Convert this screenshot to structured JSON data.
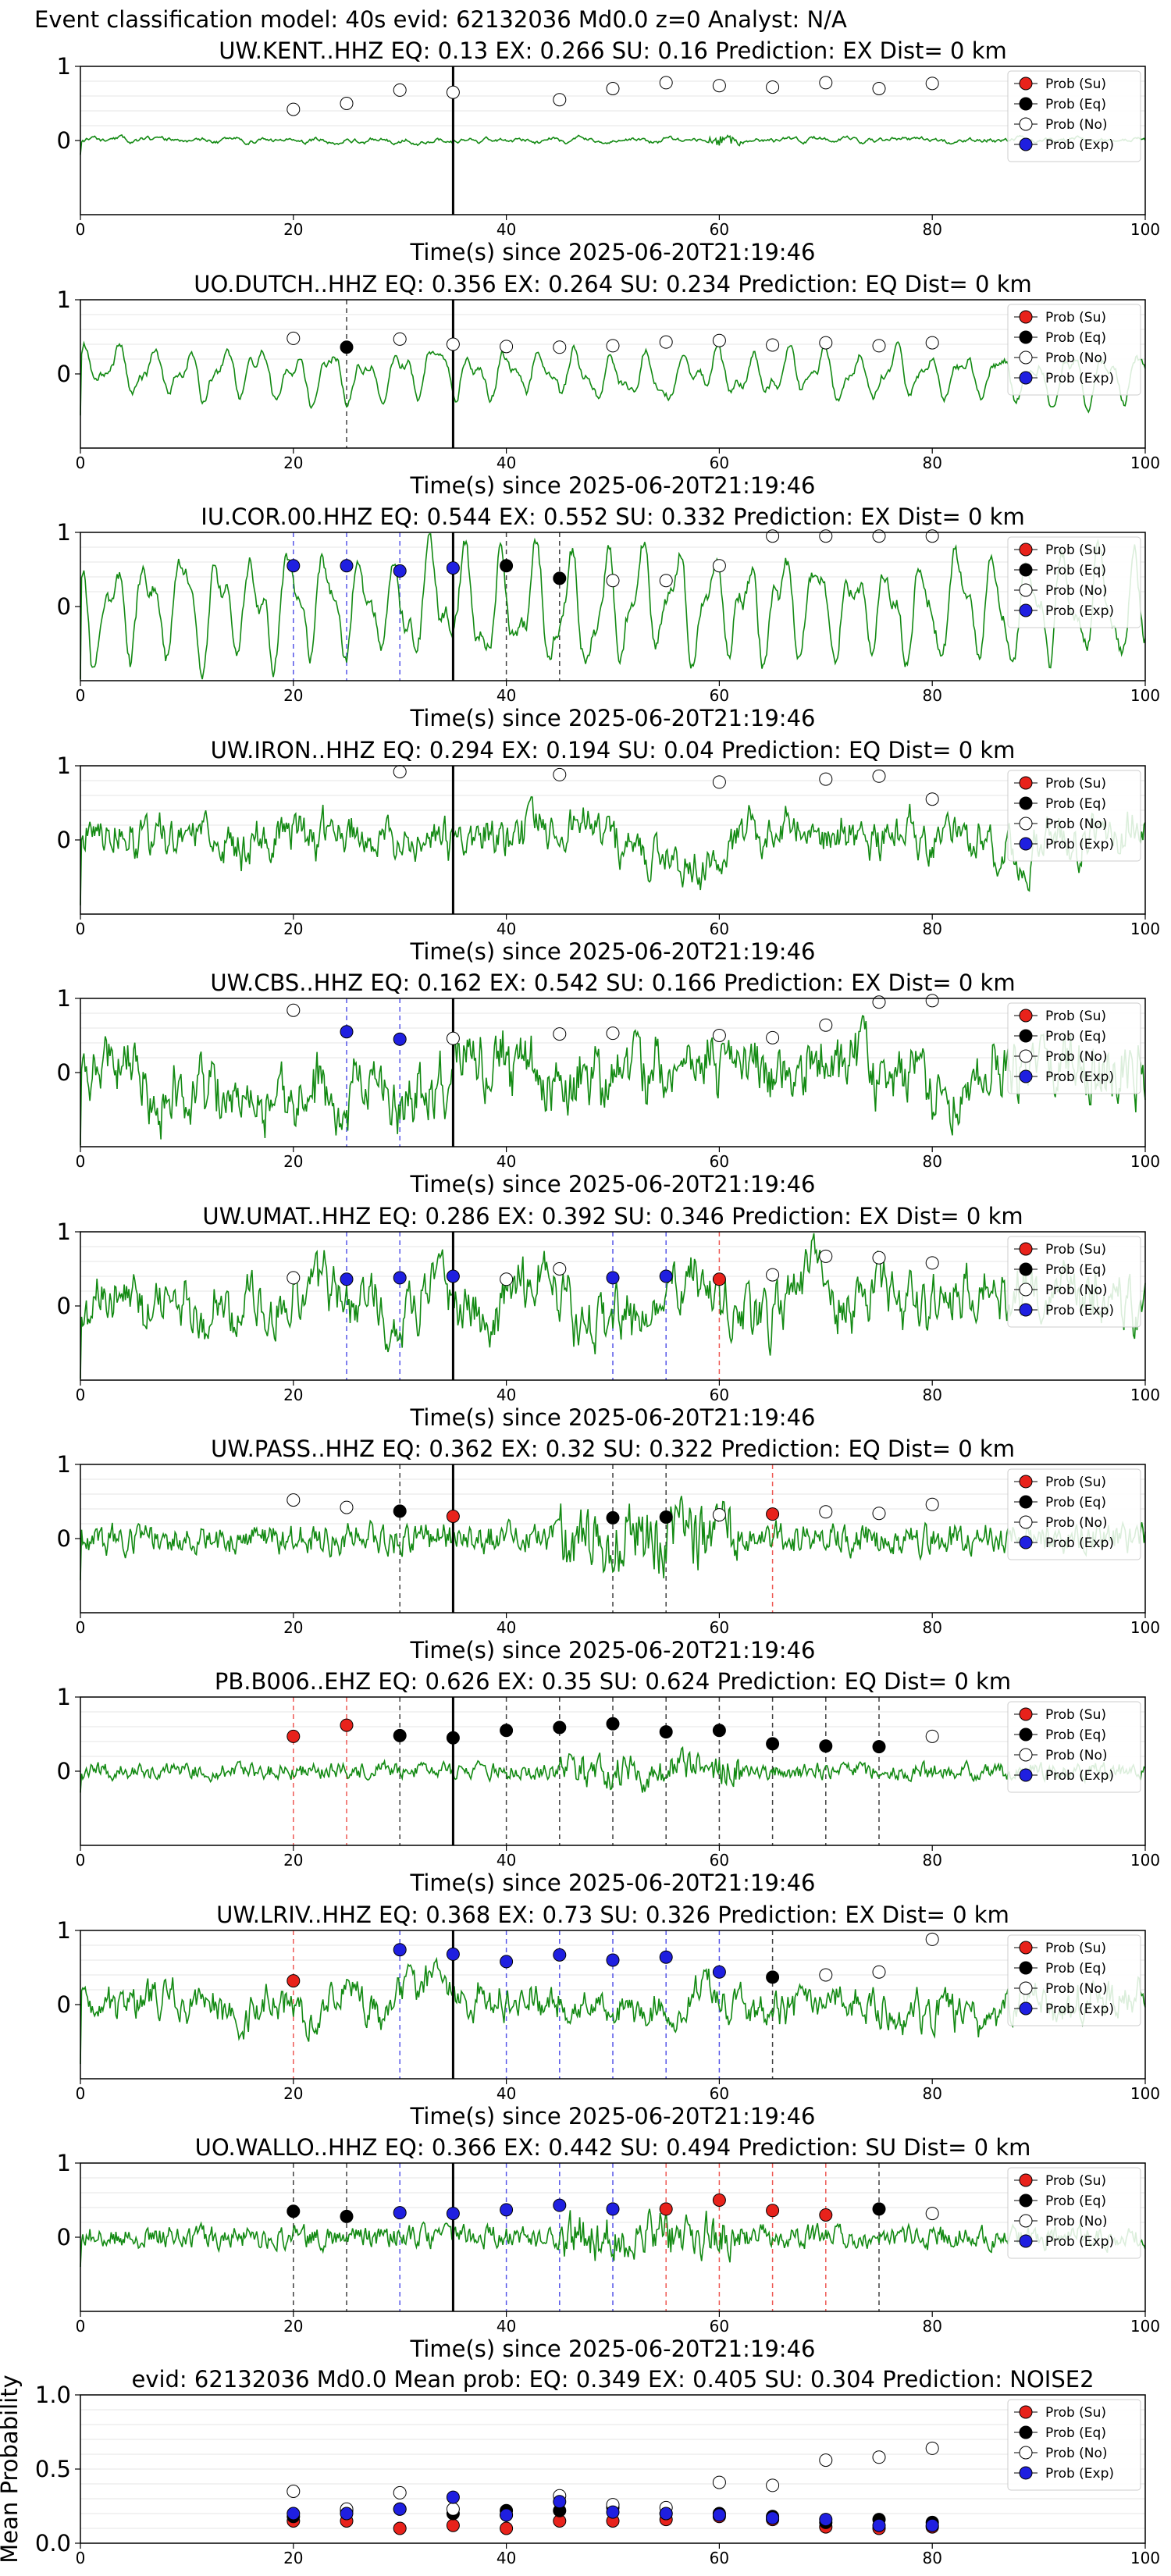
{
  "figure_title": "Event classification model: 40s evid: 62132036 Md0.0 z=0 Analyst: N/A",
  "legend_labels": [
    "Prob (Su)",
    "Prob (Eq)",
    "Prob (No)",
    "Prob (Exp)"
  ],
  "colors": {
    "su": "#e8221b",
    "eq": "#000000",
    "no": "#ffffff",
    "exp": "#1f1fe0",
    "trace": "#138a13",
    "event_line": "#000000",
    "grid": "#e6e6e6"
  },
  "chart_data": [
    {
      "type": "line",
      "title": "UW.KENT..HHZ   EQ: 0.13  EX: 0.266  SU: 0.16   Prediction: EX    Dist= 0 km",
      "xlabel": "Time(s) since 2025-06-20T21:19:46",
      "ylabel": "",
      "xlim": [
        0,
        100
      ],
      "ylim": [
        -1,
        1
      ],
      "xticks": [
        0,
        20,
        40,
        60,
        80,
        100
      ],
      "yticks": [
        0,
        1
      ],
      "event_x": 35,
      "trace": {
        "amp": 0.12,
        "style": "quiet"
      },
      "points": [
        {
          "x": 20,
          "y": 0.42,
          "cls": "no"
        },
        {
          "x": 25,
          "y": 0.5,
          "cls": "no"
        },
        {
          "x": 30,
          "y": 0.68,
          "cls": "no"
        },
        {
          "x": 35,
          "y": 0.65,
          "cls": "no"
        },
        {
          "x": 45,
          "y": 0.55,
          "cls": "no"
        },
        {
          "x": 50,
          "y": 0.7,
          "cls": "no"
        },
        {
          "x": 55,
          "y": 0.78,
          "cls": "no"
        },
        {
          "x": 60,
          "y": 0.74,
          "cls": "no"
        },
        {
          "x": 65,
          "y": 0.72,
          "cls": "no"
        },
        {
          "x": 70,
          "y": 0.78,
          "cls": "no"
        },
        {
          "x": 75,
          "y": 0.7,
          "cls": "no"
        },
        {
          "x": 80,
          "y": 0.77,
          "cls": "no"
        }
      ]
    },
    {
      "type": "line",
      "title": "UO.DUTCH..HHZ   EQ: 0.356  EX: 0.264  SU: 0.234   Prediction: EQ    Dist= 0 km",
      "xlabel": "Time(s) since 2025-06-20T21:19:46",
      "ylabel": "",
      "xlim": [
        0,
        100
      ],
      "ylim": [
        -1,
        1
      ],
      "xticks": [
        0,
        20,
        40,
        60,
        80,
        100
      ],
      "yticks": [
        0,
        1
      ],
      "event_x": 35,
      "trace": {
        "amp": 0.35,
        "style": "wavy"
      },
      "points": [
        {
          "x": 20,
          "y": 0.48,
          "cls": "no"
        },
        {
          "x": 25,
          "y": 0.36,
          "cls": "eq"
        },
        {
          "x": 30,
          "y": 0.47,
          "cls": "no"
        },
        {
          "x": 35,
          "y": 0.4,
          "cls": "no"
        },
        {
          "x": 40,
          "y": 0.37,
          "cls": "no"
        },
        {
          "x": 45,
          "y": 0.36,
          "cls": "no"
        },
        {
          "x": 50,
          "y": 0.38,
          "cls": "no"
        },
        {
          "x": 55,
          "y": 0.43,
          "cls": "no"
        },
        {
          "x": 60,
          "y": 0.45,
          "cls": "no"
        },
        {
          "x": 65,
          "y": 0.39,
          "cls": "no"
        },
        {
          "x": 70,
          "y": 0.42,
          "cls": "no"
        },
        {
          "x": 75,
          "y": 0.38,
          "cls": "no"
        },
        {
          "x": 80,
          "y": 0.42,
          "cls": "no"
        }
      ]
    },
    {
      "type": "line",
      "title": "IU.COR.00.HHZ   EQ: 0.544  EX: 0.552  SU: 0.332   Prediction: EX    Dist= 0 km",
      "xlabel": "Time(s) since 2025-06-20T21:19:46",
      "ylabel": "",
      "xlim": [
        0,
        100
      ],
      "ylim": [
        -1,
        1
      ],
      "xticks": [
        0,
        20,
        40,
        60,
        80,
        100
      ],
      "yticks": [
        0,
        1
      ],
      "event_x": 35,
      "trace": {
        "amp": 0.75,
        "style": "wavy"
      },
      "points": [
        {
          "x": 20,
          "y": 0.55,
          "cls": "exp"
        },
        {
          "x": 25,
          "y": 0.55,
          "cls": "exp"
        },
        {
          "x": 30,
          "y": 0.48,
          "cls": "exp"
        },
        {
          "x": 35,
          "y": 0.52,
          "cls": "exp"
        },
        {
          "x": 40,
          "y": 0.55,
          "cls": "eq"
        },
        {
          "x": 45,
          "y": 0.38,
          "cls": "eq"
        },
        {
          "x": 50,
          "y": 0.35,
          "cls": "no"
        },
        {
          "x": 55,
          "y": 0.35,
          "cls": "no"
        },
        {
          "x": 60,
          "y": 0.55,
          "cls": "no"
        },
        {
          "x": 65,
          "y": 0.95,
          "cls": "no"
        },
        {
          "x": 70,
          "y": 0.95,
          "cls": "no"
        },
        {
          "x": 75,
          "y": 0.95,
          "cls": "no"
        },
        {
          "x": 80,
          "y": 0.95,
          "cls": "no"
        }
      ]
    },
    {
      "type": "line",
      "title": "UW.IRON..HHZ   EQ: 0.294  EX: 0.194  SU: 0.04   Prediction: EQ    Dist= 0 km",
      "xlabel": "Time(s) since 2025-06-20T21:19:46",
      "ylabel": "",
      "xlim": [
        0,
        100
      ],
      "ylim": [
        -1,
        1
      ],
      "xticks": [
        0,
        20,
        40,
        60,
        80,
        100
      ],
      "yticks": [
        0,
        1
      ],
      "event_x": 35,
      "trace": {
        "amp": 0.55,
        "style": "noisy"
      },
      "points": [
        {
          "x": 30,
          "y": 0.92,
          "cls": "no"
        },
        {
          "x": 45,
          "y": 0.88,
          "cls": "no"
        },
        {
          "x": 60,
          "y": 0.78,
          "cls": "no"
        },
        {
          "x": 70,
          "y": 0.82,
          "cls": "no"
        },
        {
          "x": 75,
          "y": 0.86,
          "cls": "no"
        },
        {
          "x": 80,
          "y": 0.55,
          "cls": "no"
        }
      ]
    },
    {
      "type": "line",
      "title": "UW.CBS..HHZ   EQ: 0.162  EX: 0.542  SU: 0.166   Prediction: EX    Dist= 0 km",
      "xlabel": "Time(s) since 2025-06-20T21:19:46",
      "ylabel": "",
      "xlim": [
        0,
        100
      ],
      "ylim": [
        -1,
        1
      ],
      "xticks": [
        0,
        20,
        40,
        60,
        80,
        100
      ],
      "yticks": [
        0,
        1
      ],
      "event_x": 35,
      "trace": {
        "amp": 0.85,
        "style": "noisy"
      },
      "points": [
        {
          "x": 20,
          "y": 0.84,
          "cls": "no"
        },
        {
          "x": 25,
          "y": 0.55,
          "cls": "exp"
        },
        {
          "x": 30,
          "y": 0.45,
          "cls": "exp"
        },
        {
          "x": 35,
          "y": 0.46,
          "cls": "no"
        },
        {
          "x": 45,
          "y": 0.52,
          "cls": "no"
        },
        {
          "x": 50,
          "y": 0.53,
          "cls": "no"
        },
        {
          "x": 60,
          "y": 0.5,
          "cls": "no"
        },
        {
          "x": 65,
          "y": 0.47,
          "cls": "no"
        },
        {
          "x": 70,
          "y": 0.64,
          "cls": "no"
        },
        {
          "x": 75,
          "y": 0.95,
          "cls": "no"
        },
        {
          "x": 80,
          "y": 0.97,
          "cls": "no"
        }
      ]
    },
    {
      "type": "line",
      "title": "UW.UMAT..HHZ   EQ: 0.286  EX: 0.392  SU: 0.346   Prediction: EX    Dist= 0 km",
      "xlabel": "Time(s) since 2025-06-20T21:19:46",
      "ylabel": "",
      "xlim": [
        0,
        100
      ],
      "ylim": [
        -1,
        1
      ],
      "xticks": [
        0,
        20,
        40,
        60,
        80,
        100
      ],
      "yticks": [
        0,
        1
      ],
      "event_x": 35,
      "trace": {
        "amp": 0.75,
        "style": "noisy"
      },
      "points": [
        {
          "x": 20,
          "y": 0.38,
          "cls": "no"
        },
        {
          "x": 25,
          "y": 0.36,
          "cls": "exp"
        },
        {
          "x": 30,
          "y": 0.38,
          "cls": "exp"
        },
        {
          "x": 35,
          "y": 0.4,
          "cls": "exp"
        },
        {
          "x": 40,
          "y": 0.36,
          "cls": "no"
        },
        {
          "x": 45,
          "y": 0.5,
          "cls": "no"
        },
        {
          "x": 50,
          "y": 0.38,
          "cls": "exp"
        },
        {
          "x": 55,
          "y": 0.4,
          "cls": "exp"
        },
        {
          "x": 60,
          "y": 0.36,
          "cls": "su"
        },
        {
          "x": 65,
          "y": 0.42,
          "cls": "no"
        },
        {
          "x": 70,
          "y": 0.67,
          "cls": "no"
        },
        {
          "x": 75,
          "y": 0.65,
          "cls": "no"
        },
        {
          "x": 80,
          "y": 0.58,
          "cls": "no"
        }
      ]
    },
    {
      "type": "line",
      "title": "UW.PASS..HHZ   EQ: 0.362  EX: 0.32  SU: 0.322   Prediction: EQ    Dist= 0 km",
      "xlabel": "Time(s) since 2025-06-20T21:19:46",
      "ylabel": "",
      "xlim": [
        0,
        100
      ],
      "ylim": [
        -1,
        1
      ],
      "xticks": [
        0,
        20,
        40,
        60,
        80,
        100
      ],
      "yticks": [
        0,
        1
      ],
      "event_x": 35,
      "trace": {
        "amp": 0.35,
        "style": "burst"
      },
      "points": [
        {
          "x": 20,
          "y": 0.52,
          "cls": "no"
        },
        {
          "x": 25,
          "y": 0.42,
          "cls": "no"
        },
        {
          "x": 30,
          "y": 0.37,
          "cls": "eq"
        },
        {
          "x": 35,
          "y": 0.3,
          "cls": "su"
        },
        {
          "x": 50,
          "y": 0.28,
          "cls": "eq"
        },
        {
          "x": 55,
          "y": 0.29,
          "cls": "eq"
        },
        {
          "x": 60,
          "y": 0.32,
          "cls": "no"
        },
        {
          "x": 65,
          "y": 0.33,
          "cls": "su"
        },
        {
          "x": 70,
          "y": 0.36,
          "cls": "no"
        },
        {
          "x": 75,
          "y": 0.34,
          "cls": "no"
        },
        {
          "x": 80,
          "y": 0.46,
          "cls": "no"
        }
      ]
    },
    {
      "type": "line",
      "title": "PB.B006..EHZ   EQ: 0.626  EX: 0.35  SU: 0.624   Prediction: EQ    Dist= 0 km",
      "xlabel": "Time(s) since 2025-06-20T21:19:46",
      "ylabel": "",
      "xlim": [
        0,
        100
      ],
      "ylim": [
        -1,
        1
      ],
      "xticks": [
        0,
        20,
        40,
        60,
        80,
        100
      ],
      "yticks": [
        0,
        1
      ],
      "event_x": 35,
      "trace": {
        "amp": 0.18,
        "style": "burst"
      },
      "points": [
        {
          "x": 20,
          "y": 0.47,
          "cls": "su"
        },
        {
          "x": 25,
          "y": 0.62,
          "cls": "su"
        },
        {
          "x": 30,
          "y": 0.48,
          "cls": "eq"
        },
        {
          "x": 35,
          "y": 0.45,
          "cls": "eq"
        },
        {
          "x": 40,
          "y": 0.55,
          "cls": "eq"
        },
        {
          "x": 45,
          "y": 0.59,
          "cls": "eq"
        },
        {
          "x": 50,
          "y": 0.64,
          "cls": "eq"
        },
        {
          "x": 55,
          "y": 0.53,
          "cls": "eq"
        },
        {
          "x": 60,
          "y": 0.55,
          "cls": "eq"
        },
        {
          "x": 65,
          "y": 0.37,
          "cls": "eq"
        },
        {
          "x": 70,
          "y": 0.34,
          "cls": "eq"
        },
        {
          "x": 75,
          "y": 0.33,
          "cls": "eq"
        },
        {
          "x": 80,
          "y": 0.47,
          "cls": "no"
        }
      ]
    },
    {
      "type": "line",
      "title": "UW.LRIV..HHZ   EQ: 0.368  EX: 0.73  SU: 0.326   Prediction: EX    Dist= 0 km",
      "xlabel": "Time(s) since 2025-06-20T21:19:46",
      "ylabel": "",
      "xlim": [
        0,
        100
      ],
      "ylim": [
        -1,
        1
      ],
      "xticks": [
        0,
        20,
        40,
        60,
        80,
        100
      ],
      "yticks": [
        0,
        1
      ],
      "event_x": 35,
      "trace": {
        "amp": 0.5,
        "style": "noisy"
      },
      "points": [
        {
          "x": 20,
          "y": 0.32,
          "cls": "su"
        },
        {
          "x": 30,
          "y": 0.74,
          "cls": "exp"
        },
        {
          "x": 35,
          "y": 0.68,
          "cls": "exp"
        },
        {
          "x": 40,
          "y": 0.58,
          "cls": "exp"
        },
        {
          "x": 45,
          "y": 0.67,
          "cls": "exp"
        },
        {
          "x": 50,
          "y": 0.6,
          "cls": "exp"
        },
        {
          "x": 55,
          "y": 0.64,
          "cls": "exp"
        },
        {
          "x": 60,
          "y": 0.44,
          "cls": "exp"
        },
        {
          "x": 65,
          "y": 0.37,
          "cls": "eq"
        },
        {
          "x": 70,
          "y": 0.4,
          "cls": "no"
        },
        {
          "x": 75,
          "y": 0.44,
          "cls": "no"
        },
        {
          "x": 80,
          "y": 0.88,
          "cls": "no"
        }
      ]
    },
    {
      "type": "line",
      "title": "UO.WALLO..HHZ   EQ: 0.366  EX: 0.442  SU: 0.494   Prediction: SU    Dist= 0 km",
      "xlabel": "Time(s) since 2025-06-20T21:19:46",
      "ylabel": "",
      "xlim": [
        0,
        100
      ],
      "ylim": [
        -1,
        1
      ],
      "xticks": [
        0,
        20,
        40,
        60,
        80,
        100
      ],
      "yticks": [
        0,
        1
      ],
      "event_x": 35,
      "trace": {
        "amp": 0.25,
        "style": "burst"
      },
      "points": [
        {
          "x": 20,
          "y": 0.35,
          "cls": "eq"
        },
        {
          "x": 25,
          "y": 0.28,
          "cls": "eq"
        },
        {
          "x": 30,
          "y": 0.33,
          "cls": "exp"
        },
        {
          "x": 35,
          "y": 0.32,
          "cls": "exp"
        },
        {
          "x": 40,
          "y": 0.37,
          "cls": "exp"
        },
        {
          "x": 45,
          "y": 0.43,
          "cls": "exp"
        },
        {
          "x": 50,
          "y": 0.38,
          "cls": "exp"
        },
        {
          "x": 55,
          "y": 0.38,
          "cls": "su"
        },
        {
          "x": 60,
          "y": 0.5,
          "cls": "su"
        },
        {
          "x": 65,
          "y": 0.36,
          "cls": "su"
        },
        {
          "x": 70,
          "y": 0.3,
          "cls": "su"
        },
        {
          "x": 75,
          "y": 0.38,
          "cls": "eq"
        },
        {
          "x": 80,
          "y": 0.32,
          "cls": "no"
        }
      ]
    },
    {
      "type": "scatter",
      "title": "evid: 62132036  Md0.0   Mean prob:   EQ: 0.349  EX: 0.405  SU: 0.304   Prediction: NOISE2",
      "xlabel": "",
      "ylabel": "Mean Probability",
      "xlim": [
        0,
        100
      ],
      "ylim": [
        0,
        1
      ],
      "xticks": [
        0,
        20,
        40,
        60,
        80,
        100
      ],
      "yticks": [
        0.0,
        0.5,
        1.0
      ],
      "ytick_labels": [
        "0.0",
        "0.5",
        "1.0"
      ],
      "series": [
        {
          "name": "Prob (Su)",
          "cls": "su",
          "x": [
            20,
            25,
            30,
            35,
            40,
            45,
            50,
            55,
            60,
            65,
            70,
            75,
            80
          ],
          "y": [
            0.15,
            0.15,
            0.1,
            0.12,
            0.1,
            0.15,
            0.15,
            0.16,
            0.18,
            0.16,
            0.11,
            0.1,
            0.11
          ]
        },
        {
          "name": "Prob (Eq)",
          "cls": "eq",
          "x": [
            20,
            25,
            30,
            35,
            40,
            45,
            50,
            55,
            60,
            65,
            70,
            75,
            80
          ],
          "y": [
            0.18,
            0.22,
            0.23,
            0.2,
            0.22,
            0.22,
            0.24,
            0.2,
            0.2,
            0.18,
            0.14,
            0.16,
            0.14
          ]
        },
        {
          "name": "Prob (No)",
          "cls": "no",
          "x": [
            20,
            25,
            30,
            35,
            40,
            45,
            50,
            55,
            60,
            65,
            70,
            75,
            80
          ],
          "y": [
            0.35,
            0.23,
            0.34,
            0.23,
            0.19,
            0.32,
            0.26,
            0.24,
            0.41,
            0.39,
            0.56,
            0.58,
            0.64
          ]
        },
        {
          "name": "Prob (Exp)",
          "cls": "exp",
          "x": [
            20,
            25,
            30,
            35,
            40,
            45,
            50,
            55,
            60,
            65,
            70,
            75,
            80
          ],
          "y": [
            0.2,
            0.2,
            0.23,
            0.31,
            0.19,
            0.28,
            0.21,
            0.2,
            0.19,
            0.17,
            0.16,
            0.12,
            0.12
          ]
        }
      ]
    }
  ]
}
